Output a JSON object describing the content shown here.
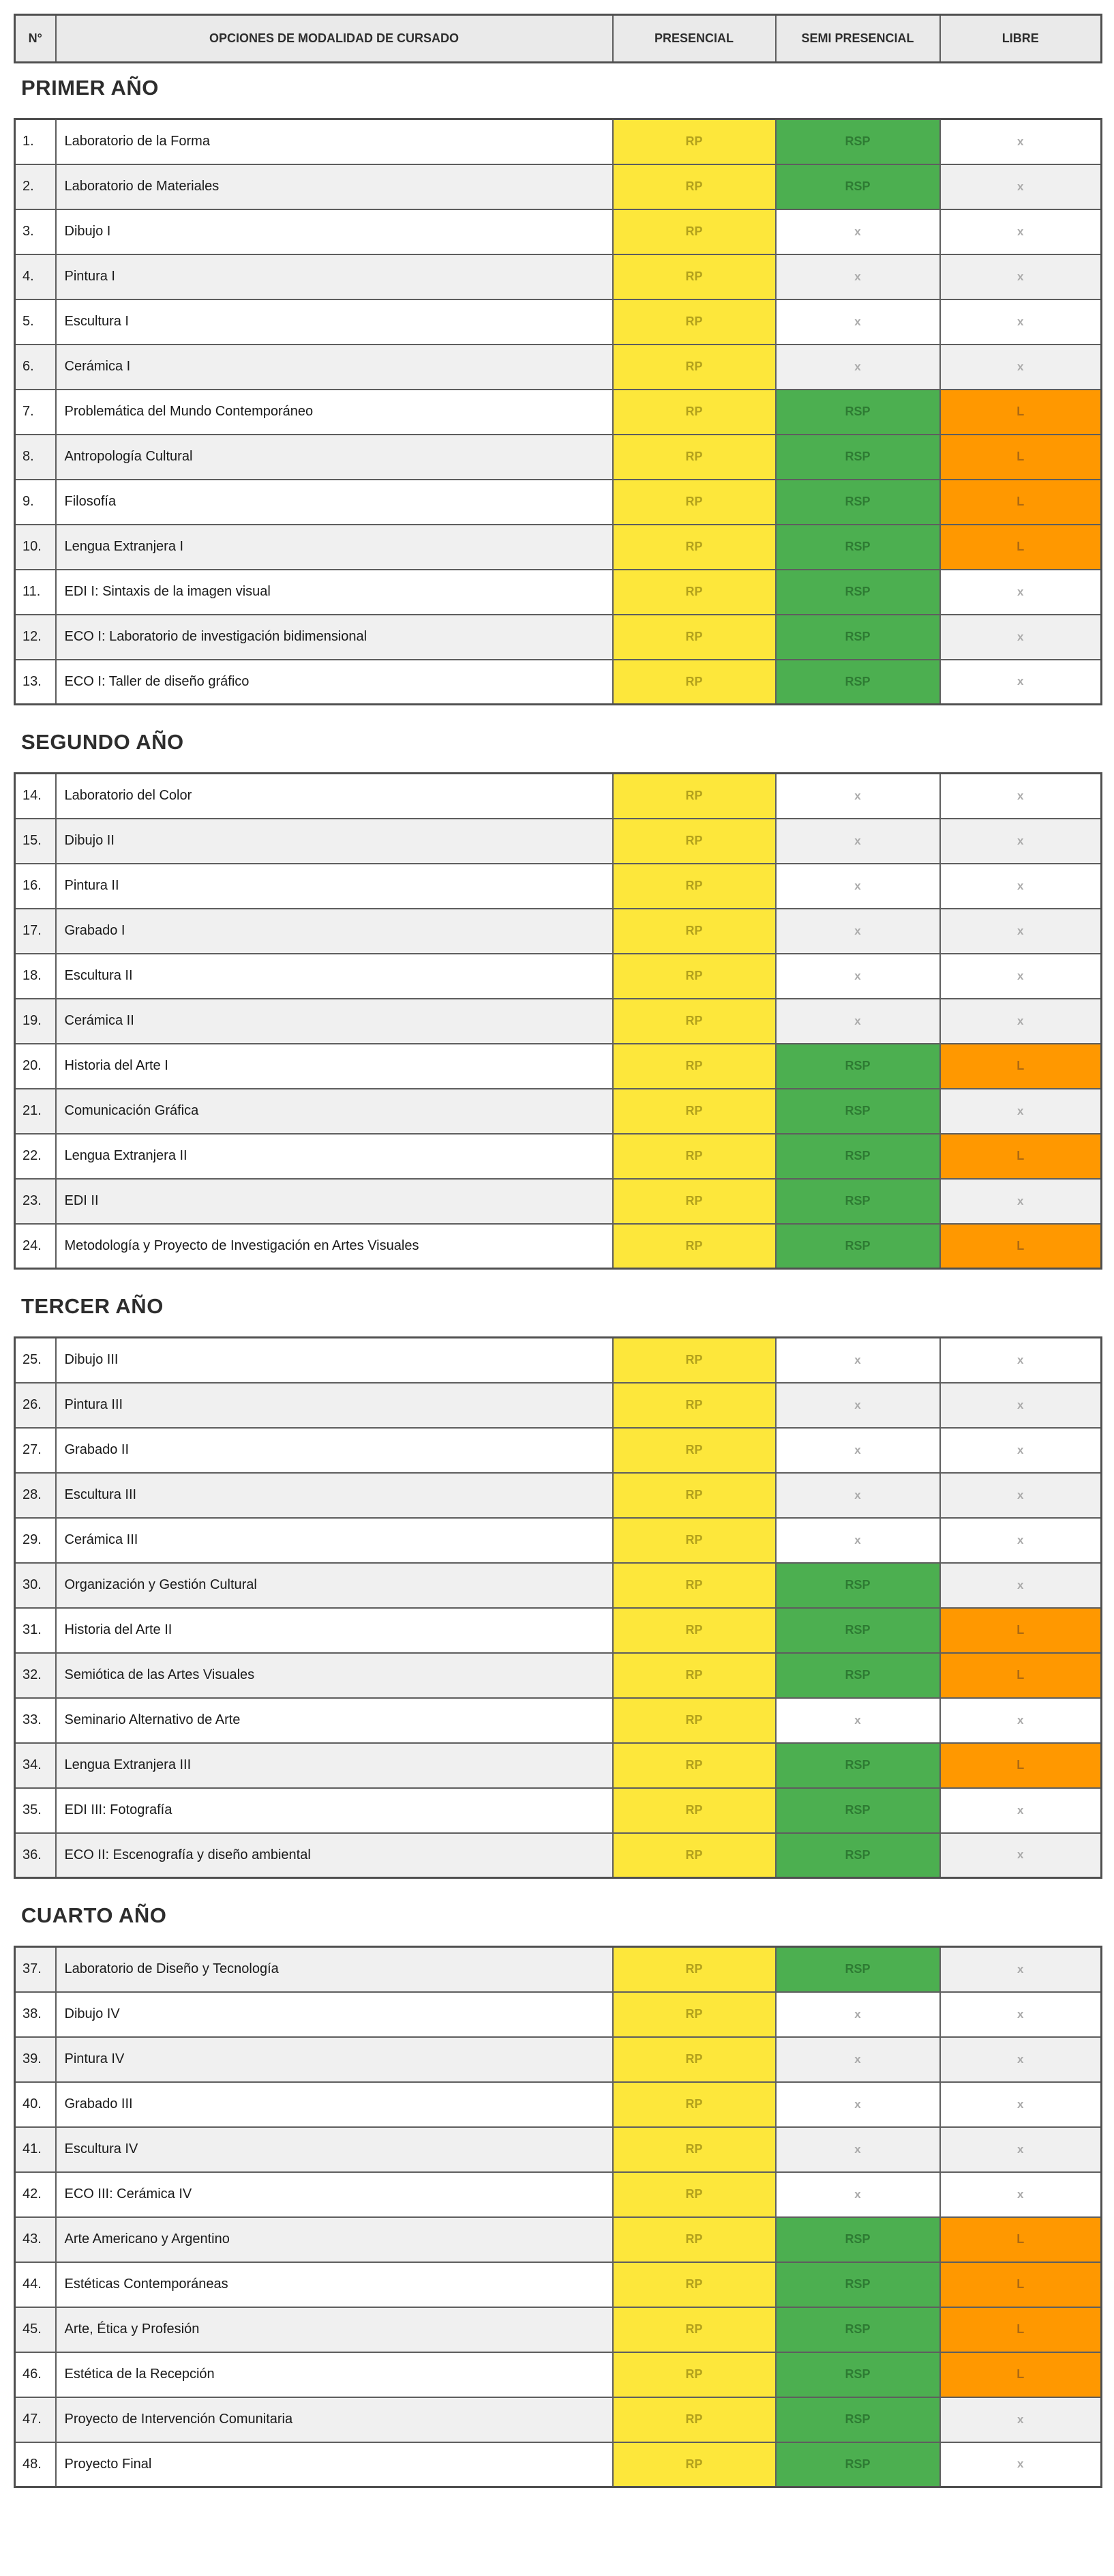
{
  "header": {
    "col_num": "N°",
    "col_options": "OPCIONES DE MODALIDAD DE CURSADO",
    "col_presencial": "PRESENCIAL",
    "col_semi": "SEMI PRESENCIAL",
    "col_libre": "LIBRE"
  },
  "labels": {
    "presencial": "RP",
    "semi": "RSP",
    "libre": "L",
    "none": "x"
  },
  "colors": {
    "presencial_bg": "#FDE73B",
    "presencial_text": "#B3A11C",
    "semi_bg": "#4CAF50",
    "semi_text": "#2E7B33",
    "libre_bg": "#FF9800",
    "libre_text": "#AE6A12",
    "stripe_bg": "#F0F0F0",
    "header_bg": "#EAEAEA",
    "none_text": "#ABABAB",
    "border": "#5E5E5E"
  },
  "sections": [
    {
      "title": "PRIMER AÑO",
      "stripe_offset": 0,
      "rows": [
        {
          "num": "1.",
          "name": "Laboratorio de la Forma",
          "semi": true,
          "libre": false
        },
        {
          "num": "2.",
          "name": "Laboratorio de Materiales",
          "semi": true,
          "libre": false
        },
        {
          "num": "3.",
          "name": "Dibujo I",
          "semi": false,
          "libre": false
        },
        {
          "num": "4.",
          "name": "Pintura I",
          "semi": false,
          "libre": false
        },
        {
          "num": "5.",
          "name": "Escultura I",
          "semi": false,
          "libre": false
        },
        {
          "num": "6.",
          "name": "Cerámica I",
          "semi": false,
          "libre": false
        },
        {
          "num": "7.",
          "name": "Problemática del Mundo Contemporáneo",
          "semi": true,
          "libre": true
        },
        {
          "num": "8.",
          "name": "Antropología Cultural",
          "semi": true,
          "libre": true
        },
        {
          "num": "9.",
          "name": "Filosofía",
          "semi": true,
          "libre": true
        },
        {
          "num": "10.",
          "name": "Lengua Extranjera I",
          "semi": true,
          "libre": true
        },
        {
          "num": "11.",
          "name": "EDI I: Sintaxis de la imagen visual",
          "semi": true,
          "libre": false
        },
        {
          "num": "12.",
          "name": "ECO I: Laboratorio de investigación bidimensional",
          "semi": true,
          "libre": false
        },
        {
          "num": "13.",
          "name": "ECO I: Taller de diseño gráfico",
          "semi": true,
          "libre": false
        }
      ]
    },
    {
      "title": "SEGUNDO AÑO",
      "stripe_offset": 0,
      "rows": [
        {
          "num": "14.",
          "name": "Laboratorio del Color",
          "semi": false,
          "libre": false
        },
        {
          "num": "15.",
          "name": "Dibujo II",
          "semi": false,
          "libre": false
        },
        {
          "num": "16.",
          "name": "Pintura II",
          "semi": false,
          "libre": false
        },
        {
          "num": "17.",
          "name": "Grabado I",
          "semi": false,
          "libre": false
        },
        {
          "num": "18.",
          "name": "Escultura II",
          "semi": false,
          "libre": false
        },
        {
          "num": "19.",
          "name": "Cerámica II",
          "semi": false,
          "libre": false
        },
        {
          "num": "20.",
          "name": "Historia del Arte I",
          "semi": true,
          "libre": true
        },
        {
          "num": "21.",
          "name": "Comunicación Gráfica",
          "semi": true,
          "libre": false
        },
        {
          "num": "22.",
          "name": "Lengua Extranjera II",
          "semi": true,
          "libre": true
        },
        {
          "num": "23.",
          "name": "EDI II",
          "semi": true,
          "libre": false
        },
        {
          "num": "24.",
          "name": "Metodología y Proyecto de Investigación en Artes Visuales",
          "semi": true,
          "libre": true
        }
      ]
    },
    {
      "title": "TERCER AÑO",
      "stripe_offset": 0,
      "rows": [
        {
          "num": "25.",
          "name": "Dibujo III",
          "semi": false,
          "libre": false
        },
        {
          "num": "26.",
          "name": "Pintura III",
          "semi": false,
          "libre": false
        },
        {
          "num": "27.",
          "name": "Grabado II",
          "semi": false,
          "libre": false
        },
        {
          "num": "28.",
          "name": "Escultura III",
          "semi": false,
          "libre": false
        },
        {
          "num": "29.",
          "name": "Cerámica III",
          "semi": false,
          "libre": false
        },
        {
          "num": "30.",
          "name": "Organización y Gestión Cultural",
          "semi": true,
          "libre": false
        },
        {
          "num": "31.",
          "name": "Historia del Arte II",
          "semi": true,
          "libre": true
        },
        {
          "num": "32.",
          "name": "Semiótica de las Artes Visuales",
          "semi": true,
          "libre": true
        },
        {
          "num": "33.",
          "name": "Seminario Alternativo de Arte",
          "semi": false,
          "libre": false
        },
        {
          "num": "34.",
          "name": "Lengua Extranjera III",
          "semi": true,
          "libre": true
        },
        {
          "num": "35.",
          "name": "EDI III: Fotografía",
          "semi": true,
          "libre": false
        },
        {
          "num": "36.",
          "name": "ECO II: Escenografía y diseño ambiental",
          "semi": true,
          "libre": false
        }
      ]
    },
    {
      "title": "CUARTO AÑO",
      "stripe_offset": 1,
      "rows": [
        {
          "num": "37.",
          "name": "Laboratorio de Diseño y Tecnología",
          "semi": true,
          "libre": false
        },
        {
          "num": "38.",
          "name": "Dibujo IV",
          "semi": false,
          "libre": false
        },
        {
          "num": "39.",
          "name": "Pintura IV",
          "semi": false,
          "libre": false
        },
        {
          "num": "40.",
          "name": "Grabado III",
          "semi": false,
          "libre": false
        },
        {
          "num": "41.",
          "name": "Escultura IV",
          "semi": false,
          "libre": false
        },
        {
          "num": "42.",
          "name": "ECO III: Cerámica IV",
          "semi": false,
          "libre": false
        },
        {
          "num": "43.",
          "name": "Arte Americano y Argentino",
          "semi": true,
          "libre": true
        },
        {
          "num": "44.",
          "name": "Estéticas Contemporáneas",
          "semi": true,
          "libre": true
        },
        {
          "num": "45.",
          "name": "Arte, Ética y Profesión",
          "semi": true,
          "libre": true
        },
        {
          "num": "46.",
          "name": "Estética de la Recepción",
          "semi": true,
          "libre": true
        },
        {
          "num": "47.",
          "name": "Proyecto de Intervención Comunitaria",
          "semi": true,
          "libre": false
        },
        {
          "num": "48.",
          "name": "Proyecto Final",
          "semi": true,
          "libre": false
        }
      ]
    }
  ]
}
